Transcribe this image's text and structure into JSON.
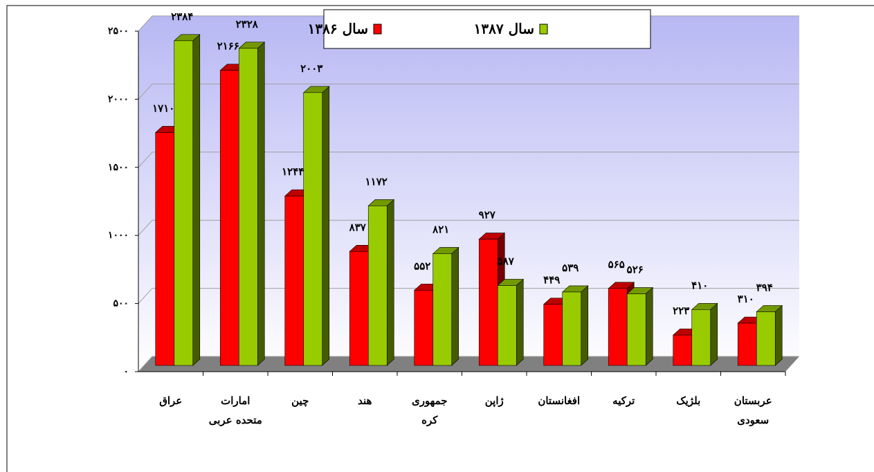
{
  "chart_data": {
    "type": "bar3d",
    "categories": [
      [
        "عراق"
      ],
      [
        "امارات",
        "متحده عربی"
      ],
      [
        "چین"
      ],
      [
        "هند"
      ],
      [
        "جمهوری",
        "کره"
      ],
      [
        "ژاپن"
      ],
      [
        "افغانستان"
      ],
      [
        "ترکیه"
      ],
      [
        "بلژیک"
      ],
      [
        "عربستان",
        "سعودی"
      ]
    ],
    "series": [
      {
        "name": "سال ۱۳۸۶",
        "color": "#ff0000",
        "values": [
          1710,
          2166,
          1244,
          837,
          552,
          927,
          449,
          565,
          223,
          310
        ],
        "value_labels": [
          "۱۷۱۰",
          "۲۱۶۶",
          "۱۲۴۴",
          "۸۳۷",
          "۵۵۲",
          "۹۲۷",
          "۴۴۹",
          "۵۶۵",
          "۲۲۳",
          "۳۱۰"
        ]
      },
      {
        "name": "سال ۱۳۸۷",
        "color": "#99cc00",
        "values": [
          2384,
          2328,
          2003,
          1172,
          821,
          587,
          539,
          526,
          410,
          394
        ],
        "value_labels": [
          "۲۳۸۴",
          "۲۳۲۸",
          "۲۰۰۳",
          "۱۱۷۲",
          "۸۲۱",
          "۵۸۷",
          "۵۳۹",
          "۵۲۶",
          "۴۱۰",
          "۳۹۴"
        ]
      }
    ],
    "ylim": [
      0,
      2500
    ],
    "yticks": [
      {
        "value": 0,
        "label": "۰"
      },
      {
        "value": 500,
        "label": "۵۰۰"
      },
      {
        "value": 1000,
        "label": "۱۰۰۰"
      },
      {
        "value": 1500,
        "label": "۱۵۰۰"
      },
      {
        "value": 2000,
        "label": "۲۰۰۰"
      },
      {
        "value": 2500,
        "label": "۲۵۰۰"
      }
    ],
    "grid": true
  }
}
